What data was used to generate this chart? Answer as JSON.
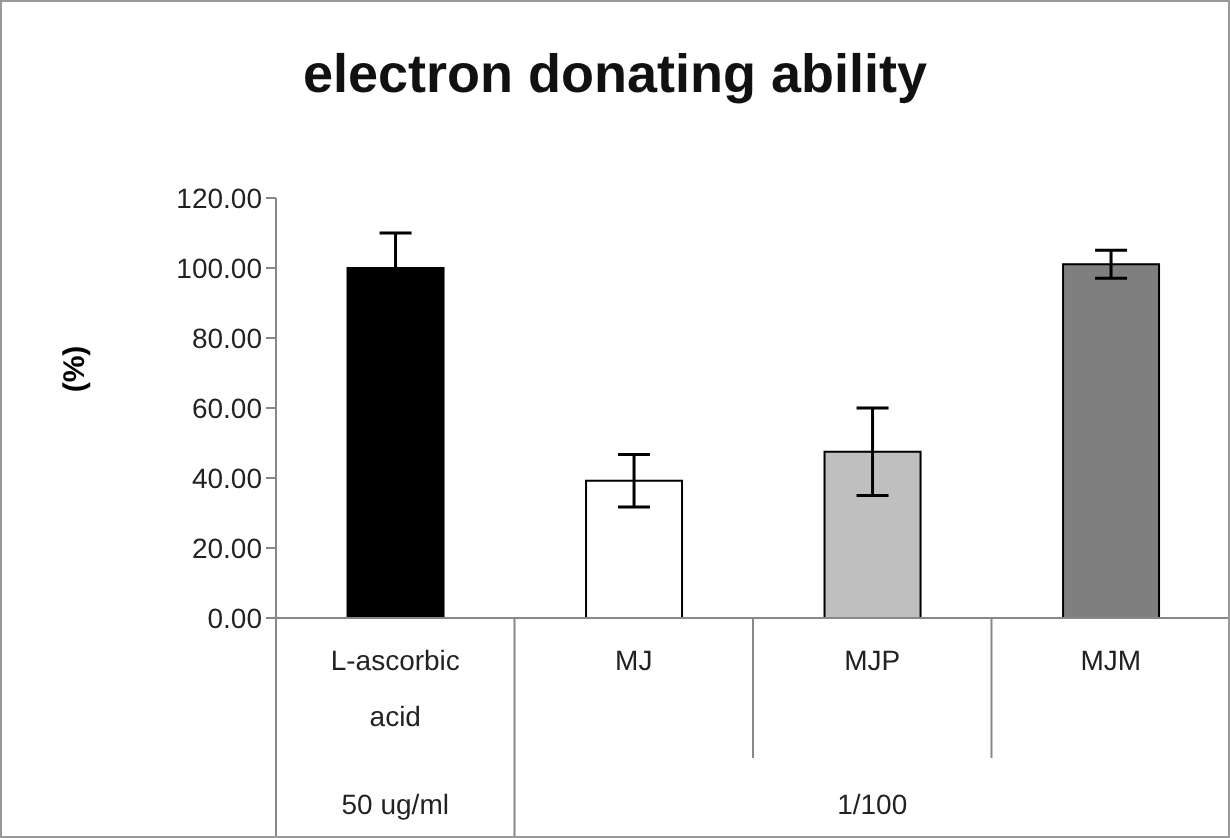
{
  "chart_data": {
    "type": "bar",
    "title": "electron donating ability",
    "ylabel": "(%)",
    "categories": [
      "L-ascorbic acid",
      "MJ",
      "MJP",
      "MJM"
    ],
    "values": [
      100,
      39.2,
      47.5,
      101.1
    ],
    "errors": [
      10,
      7.5,
      12.5,
      4
    ],
    "colors": [
      "#000000",
      "#ffffff",
      "#bfbfbf",
      "#7f7f7f"
    ],
    "ylim": [
      0,
      120
    ],
    "yticks": [
      {
        "value": 0,
        "label": "0.00"
      },
      {
        "value": 20,
        "label": "20.00"
      },
      {
        "value": 40,
        "label": "40.00"
      },
      {
        "value": 60,
        "label": "60.00"
      },
      {
        "value": 80,
        "label": "80.00"
      },
      {
        "value": 100,
        "label": "100.00"
      },
      {
        "value": 120,
        "label": "120.00"
      }
    ],
    "annotations": [
      "50 ug/ml",
      "1/100"
    ],
    "grid": false,
    "legend": false
  }
}
